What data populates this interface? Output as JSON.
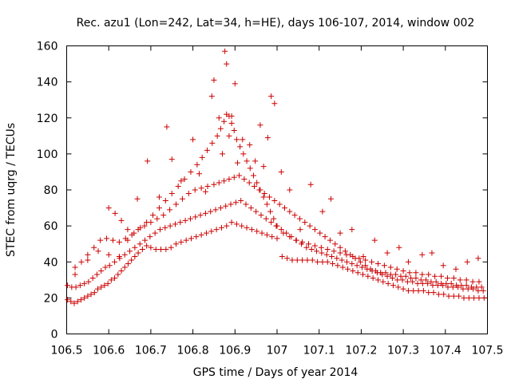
{
  "chart_data": {
    "type": "scatter",
    "title": "Rec. azu1 (Lon=242, Lat=34, h=HE), days 106-107, 2014, window 002",
    "xlabel": "GPS time / Days of year 2014",
    "ylabel": "STEC from uqrg / TECUs",
    "xlim": [
      106.5,
      107.5
    ],
    "ylim": [
      0,
      160
    ],
    "x_ticks": [
      106.5,
      106.6,
      106.7,
      106.8,
      106.9,
      107.0,
      107.1,
      107.2,
      107.3,
      107.4,
      107.5
    ],
    "x_tick_labels": [
      "106.5",
      "106.6",
      "106.7",
      "106.8",
      "106.9",
      "107",
      "107.1",
      "107.2",
      "107.3",
      "107.4",
      "107.5"
    ],
    "y_ticks": [
      0,
      20,
      40,
      60,
      80,
      100,
      120,
      140,
      160
    ],
    "y_tick_labels": [
      "0",
      "20",
      "40",
      "60",
      "80",
      "100",
      "120",
      "140",
      "160"
    ],
    "grid": false,
    "legend": "none",
    "marker": "plus",
    "color": "#cc0000",
    "series": [
      {
        "x": [
          106.502,
          106.51,
          106.518,
          106.526,
          106.534,
          106.542,
          106.55,
          106.558,
          106.566,
          106.574,
          106.582,
          106.59,
          106.598,
          106.606,
          106.614,
          106.622,
          106.63,
          106.638,
          106.646,
          106.654,
          106.662,
          106.67,
          106.68,
          106.69,
          106.7,
          106.712,
          106.724,
          106.736,
          106.748,
          106.76,
          106.772,
          106.784,
          106.796,
          106.808,
          106.82,
          106.832,
          106.844,
          106.856,
          106.868,
          106.88,
          106.892,
          106.904,
          106.916,
          106.928,
          106.94,
          106.952,
          106.964,
          106.976,
          106.988,
          107.0,
          107.012,
          107.024,
          107.036,
          107.048,
          107.06,
          107.072,
          107.084,
          107.096,
          107.108,
          107.12,
          107.132,
          107.144,
          107.156,
          107.168,
          107.18,
          107.192,
          107.204,
          107.216,
          107.228,
          107.24,
          107.252,
          107.264,
          107.276,
          107.288,
          107.3,
          107.312,
          107.324,
          107.336,
          107.348,
          107.36,
          107.372,
          107.384,
          107.396,
          107.408,
          107.42,
          107.432,
          107.444,
          107.456,
          107.468,
          107.48,
          107.492
        ],
        "y": [
          19,
          18,
          17,
          18,
          19,
          20,
          21,
          22,
          23,
          25,
          26,
          27,
          28,
          30,
          31,
          33,
          35,
          37,
          39,
          41,
          43,
          45,
          47,
          49,
          48,
          47,
          47,
          47,
          48,
          50,
          51,
          52,
          53,
          54,
          55,
          56,
          57,
          58,
          59,
          60,
          62,
          61,
          60,
          59,
          58,
          57,
          56,
          55,
          54,
          53,
          43,
          42,
          41,
          41,
          41,
          41,
          41,
          40,
          40,
          40,
          39,
          38,
          37,
          36,
          35,
          34,
          33,
          32,
          31,
          30,
          29,
          28,
          27,
          26,
          25,
          24,
          24,
          24,
          24,
          23,
          23,
          22,
          22,
          21,
          21,
          21,
          20,
          20,
          20,
          20,
          20
        ]
      },
      {
        "x": [
          106.502,
          106.512,
          106.522,
          106.532,
          106.542,
          106.552,
          106.562,
          106.572,
          106.582,
          106.592,
          106.602,
          106.614,
          106.626,
          106.638,
          106.65,
          106.662,
          106.674,
          106.686,
          106.698,
          106.71,
          106.722,
          106.734,
          106.746,
          106.758,
          106.77,
          106.782,
          106.794,
          106.806,
          106.818,
          106.83,
          106.842,
          106.854,
          106.866,
          106.878,
          106.89,
          106.902,
          106.914,
          106.926,
          106.938,
          106.95,
          106.962,
          106.974,
          106.986,
          106.998,
          107.01,
          107.022,
          107.034,
          107.046,
          107.058,
          107.07,
          107.082,
          107.094,
          107.106,
          107.118,
          107.13,
          107.142,
          107.154,
          107.166,
          107.178,
          107.19,
          107.202,
          107.214,
          107.226,
          107.238,
          107.25,
          107.262,
          107.274,
          107.286,
          107.298,
          107.31,
          107.322,
          107.334,
          107.346,
          107.358,
          107.37,
          107.382,
          107.394,
          107.406,
          107.418,
          107.43,
          107.442,
          107.454,
          107.466,
          107.478,
          107.49
        ],
        "y": [
          27,
          26,
          26,
          27,
          28,
          29,
          31,
          33,
          35,
          37,
          38,
          40,
          42,
          44,
          46,
          48,
          50,
          52,
          54,
          56,
          58,
          59,
          60,
          61,
          62,
          63,
          64,
          65,
          66,
          67,
          68,
          69,
          70,
          71,
          72,
          73,
          74,
          72,
          70,
          68,
          66,
          64,
          62,
          60,
          58,
          56,
          54,
          52,
          50,
          48,
          47,
          46,
          45,
          44,
          43,
          42,
          41,
          40,
          39,
          38,
          37,
          36,
          35,
          34,
          33,
          32,
          31,
          30,
          30,
          29,
          29,
          28,
          28,
          28,
          27,
          27,
          27,
          26,
          26,
          26,
          25,
          25,
          25,
          24,
          24
        ]
      },
      {
        "x": [
          106.52,
          106.535,
          106.55,
          106.565,
          106.58,
          106.595,
          106.61,
          106.625,
          106.64,
          106.655,
          106.67,
          106.685,
          106.7,
          106.715,
          106.73,
          106.745,
          106.76,
          106.775,
          106.79,
          106.805,
          106.82,
          106.835,
          106.85,
          106.862,
          106.874,
          106.886,
          106.898,
          106.91,
          106.922,
          106.934,
          106.946,
          106.958,
          106.97,
          106.982,
          106.994,
          107.006,
          107.018,
          107.03,
          107.042,
          107.054,
          107.066,
          107.078,
          107.09,
          107.102,
          107.114,
          107.126,
          107.138,
          107.15,
          107.162,
          107.174,
          107.186,
          107.198,
          107.21,
          107.222,
          107.234,
          107.246,
          107.258,
          107.27,
          107.282,
          107.294,
          107.306,
          107.318,
          107.33,
          107.342,
          107.354,
          107.366,
          107.378,
          107.39,
          107.402,
          107.414,
          107.426,
          107.438,
          107.45,
          107.462,
          107.474,
          107.486
        ],
        "y": [
          37,
          40,
          44,
          48,
          52,
          53,
          52,
          51,
          53,
          55,
          58,
          60,
          62,
          64,
          66,
          69,
          72,
          75,
          78,
          80,
          81,
          82,
          83,
          84,
          85,
          86,
          87,
          88,
          86,
          84,
          82,
          80,
          78,
          76,
          74,
          72,
          70,
          68,
          66,
          64,
          62,
          60,
          58,
          56,
          54,
          52,
          50,
          48,
          46,
          44,
          42,
          40,
          38,
          36,
          35,
          34,
          34,
          33,
          33,
          32,
          32,
          31,
          31,
          30,
          30,
          29,
          29,
          28,
          28,
          28,
          27,
          27,
          27,
          26,
          26,
          26
        ]
      },
      {
        "x": [
          106.6,
          106.615,
          106.63,
          106.645,
          106.66,
          106.675,
          106.69,
          106.705,
          106.72,
          106.735,
          106.75,
          106.765,
          106.78,
          106.795,
          106.81,
          106.822,
          106.834,
          106.846,
          106.858,
          106.866,
          106.874,
          106.88,
          106.886,
          106.892,
          106.898,
          106.904,
          106.912,
          106.92,
          106.928,
          106.936,
          106.944,
          106.952,
          106.96,
          106.968,
          106.976,
          106.984,
          106.992,
          107.0,
          107.015,
          107.03,
          107.045,
          107.06,
          107.075,
          107.09,
          107.105,
          107.12,
          107.135,
          107.15,
          107.165,
          107.18,
          107.195,
          107.21,
          107.225,
          107.24,
          107.255,
          107.27,
          107.285,
          107.3,
          107.315,
          107.33,
          107.345,
          107.36,
          107.375,
          107.39,
          107.405,
          107.42,
          107.435,
          107.45,
          107.465,
          107.48
        ],
        "y": [
          70,
          67,
          63,
          58,
          56,
          59,
          62,
          66,
          70,
          74,
          78,
          82,
          86,
          90,
          94,
          98,
          102,
          106,
          110,
          114,
          118,
          122,
          121,
          117,
          113,
          108,
          104,
          100,
          96,
          92,
          88,
          84,
          80,
          76,
          72,
          68,
          64,
          60,
          56,
          54,
          52,
          51,
          50,
          49,
          48,
          47,
          46,
          45,
          44,
          43,
          42,
          41,
          40,
          39,
          38,
          37,
          36,
          35,
          34,
          34,
          33,
          33,
          32,
          32,
          31,
          31,
          30,
          30,
          29,
          29
        ]
      },
      {
        "x": [
          106.52,
          106.55,
          106.575,
          106.6,
          106.625,
          106.645,
          106.668,
          106.692,
          106.72,
          106.738,
          106.75,
          106.772,
          106.8,
          106.815,
          106.83,
          106.845,
          106.85,
          106.862,
          106.87,
          106.876,
          106.88,
          106.886,
          106.892,
          106.9,
          106.906,
          106.918,
          106.935,
          106.948,
          106.96,
          106.968,
          106.978,
          106.986,
          106.994,
          107.01,
          107.03,
          107.055,
          107.08,
          107.108,
          107.128,
          107.15,
          107.178,
          107.205,
          107.232,
          107.262,
          107.29,
          107.312,
          107.345,
          107.368,
          107.395,
          107.425,
          107.452,
          107.478
        ],
        "y": [
          33,
          41,
          46,
          44,
          43,
          52,
          75,
          96,
          76,
          115,
          97,
          85,
          108,
          89,
          79,
          132,
          141,
          120,
          100,
          157,
          150,
          110,
          121,
          139,
          95,
          108,
          105,
          96,
          116,
          93,
          109,
          132,
          128,
          90,
          80,
          58,
          83,
          68,
          75,
          56,
          58,
          43,
          52,
          45,
          48,
          40,
          44,
          45,
          38,
          36,
          40,
          42
        ]
      }
    ]
  }
}
